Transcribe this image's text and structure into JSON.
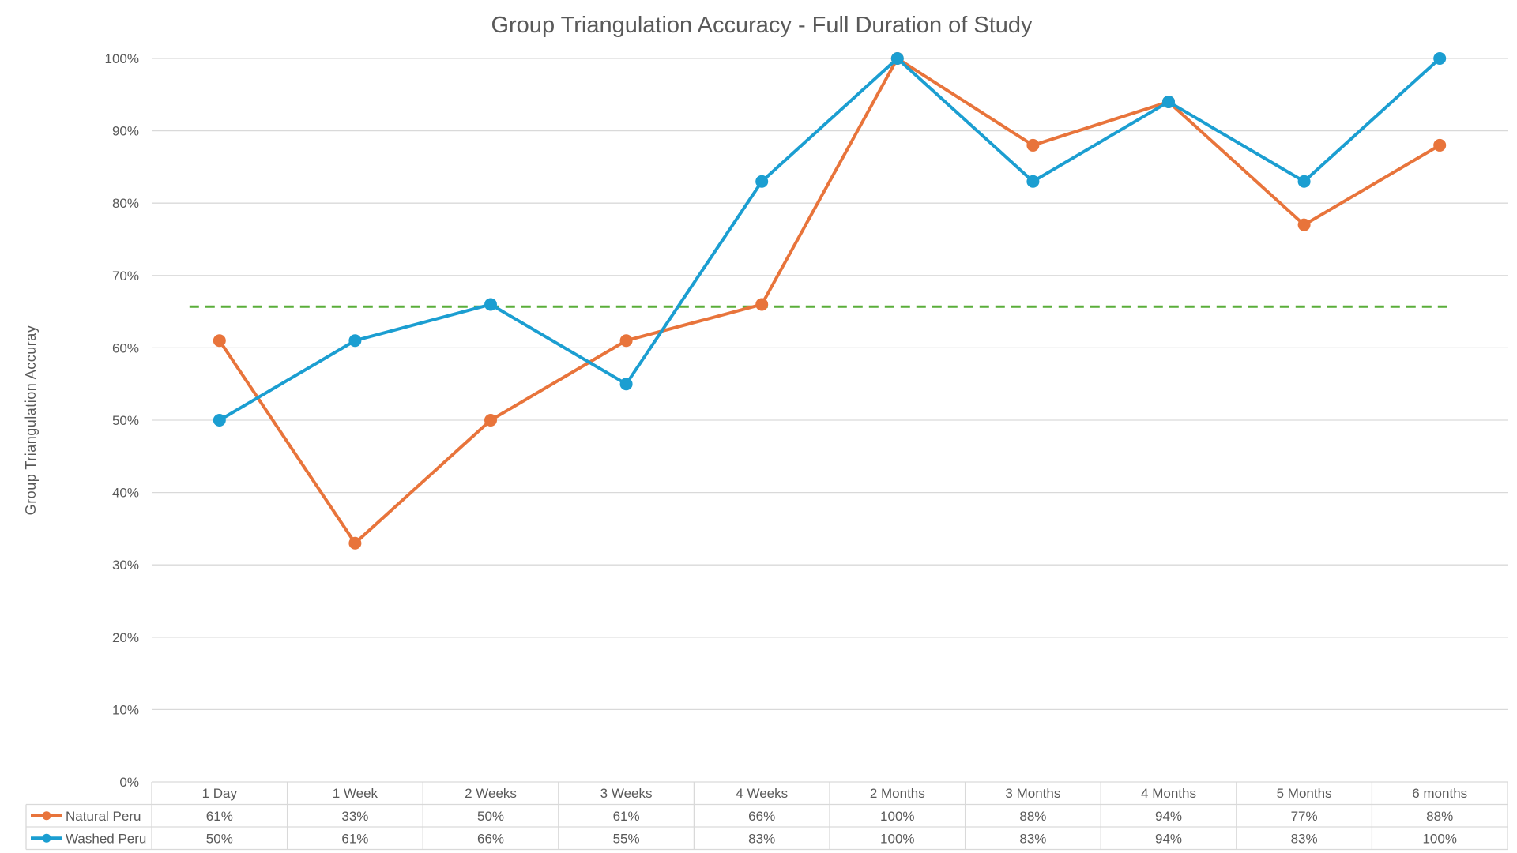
{
  "chart_data": {
    "type": "line",
    "title": "Group Triangulation Accuracy - Full Duration of Study",
    "ylabel": "Group Triangulation Accuray",
    "xlabel": "",
    "categories": [
      "1 Day",
      "1 Week",
      "2 Weeks",
      "3 Weeks",
      "4 Weeks",
      "2 Months",
      "3 Months",
      "4 Months",
      "5 Months",
      "6 months"
    ],
    "ylim": [
      0,
      100
    ],
    "ytick_values": [
      0,
      10,
      20,
      30,
      40,
      50,
      60,
      70,
      80,
      90,
      100
    ],
    "ytick_labels": [
      "0%",
      "10%",
      "20%",
      "30%",
      "40%",
      "50%",
      "60%",
      "70%",
      "80%",
      "90%",
      "100%"
    ],
    "grid": true,
    "legend_placement": "data-table",
    "series": [
      {
        "name": "Natural Peru",
        "color": "#E8743B",
        "values": [
          61,
          33,
          50,
          61,
          66,
          100,
          88,
          94,
          77,
          88
        ],
        "labels": [
          "61%",
          "33%",
          "50%",
          "61%",
          "66%",
          "100%",
          "88%",
          "94%",
          "77%",
          "88%"
        ]
      },
      {
        "name": "Washed Peru",
        "color": "#1B9ED1",
        "values": [
          50,
          61,
          66,
          55,
          83,
          100,
          83,
          94,
          83,
          100
        ],
        "labels": [
          "50%",
          "61%",
          "66%",
          "55%",
          "83%",
          "100%",
          "83%",
          "94%",
          "83%",
          "100%"
        ]
      }
    ],
    "reference_line": {
      "value": 65.7,
      "color": "#5AAE3A",
      "style": "dashed"
    }
  }
}
